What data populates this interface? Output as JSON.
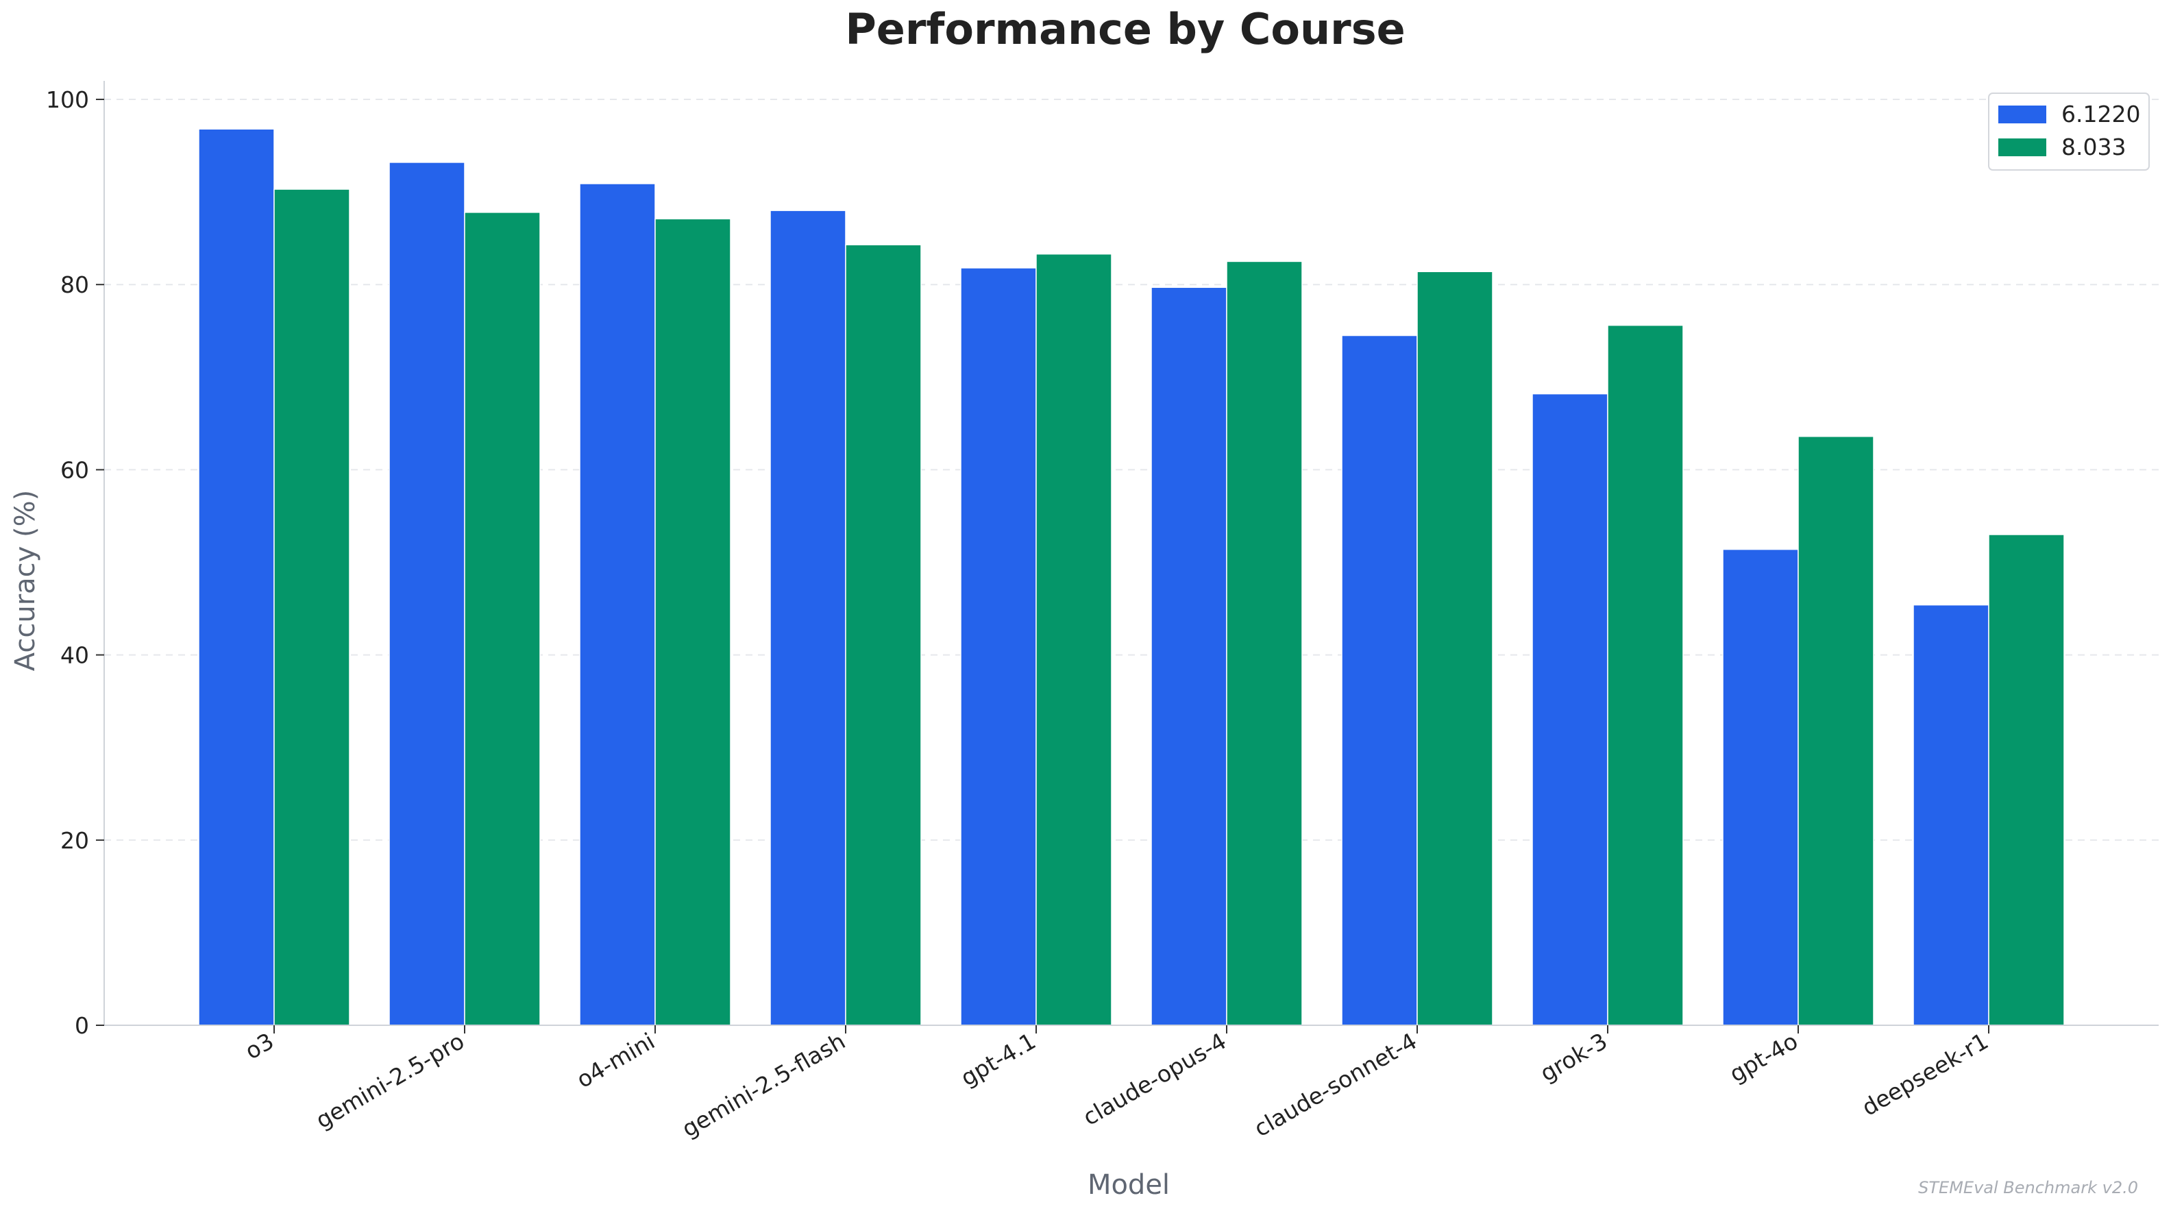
{
  "chart_data": {
    "type": "bar",
    "title": "Performance by Course",
    "xlabel": "Model",
    "ylabel": "Accuracy (%)",
    "ylim": [
      0,
      102
    ],
    "yticks": [
      0,
      20,
      40,
      60,
      80,
      100
    ],
    "grid": "horizontal dashed",
    "legend_position": "top-right",
    "categories": [
      "o3",
      "gemini-2.5-pro",
      "o4-mini",
      "gemini-2.5-flash",
      "gpt-4.1",
      "claude-opus-4",
      "claude-sonnet-4",
      "grok-3",
      "gpt-4o",
      "deepseek-r1"
    ],
    "series": [
      {
        "name": "6.1220",
        "color": "#2563eb",
        "values": [
          96.8,
          93.2,
          90.9,
          88.0,
          81.8,
          79.7,
          74.5,
          68.2,
          51.4,
          45.4
        ]
      },
      {
        "name": "8.033",
        "color": "#059669",
        "values": [
          90.3,
          87.8,
          87.1,
          84.3,
          83.3,
          82.5,
          81.4,
          75.6,
          63.6,
          53.0
        ]
      }
    ],
    "footnote": "STEMEval Benchmark v2.0"
  }
}
